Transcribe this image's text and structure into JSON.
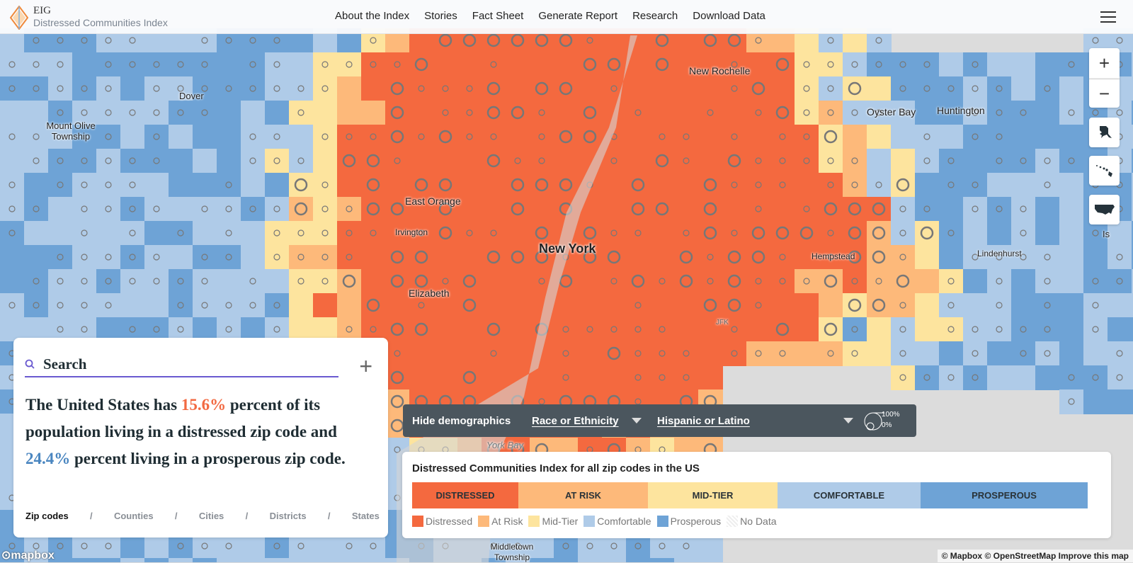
{
  "header": {
    "brand": "EIG",
    "subtitle": "Distressed Communities Index",
    "nav": [
      "About the Index",
      "Stories",
      "Fact Sheet",
      "Generate Report",
      "Research",
      "Download Data"
    ]
  },
  "map_controls": {
    "zoom_in": "+",
    "zoom_out": "−",
    "icons": [
      "alaska-icon",
      "hawaii-icon",
      "usa-icon"
    ]
  },
  "map_labels": {
    "dover": "Dover",
    "mount_olive": "Mount Olive Township",
    "east_orange": "East Orange",
    "irvington": "Irvington",
    "elizabeth": "Elizabeth",
    "new_york": "New York",
    "new_rochelle": "New Rochelle",
    "oyster_bay": "Oyster Bay",
    "huntington": "Huntington",
    "hempstead": "Hempstead",
    "lindenhurst": "Lindenhurst",
    "jfk": "JFK",
    "york_bay": "York Bay",
    "middletown": "Middletown Township",
    "is": "Is"
  },
  "search": {
    "placeholder": "Search"
  },
  "summary": {
    "p1": "The United States has ",
    "distressed_pct": "15.6%",
    "p2": " percent of its population living in a distressed zip code and ",
    "prosperous_pct": "24.4%",
    "p3": " percent living in a prosperous zip code."
  },
  "levels": {
    "items": [
      "Zip codes",
      "Counties",
      "Cities",
      "Districts",
      "States"
    ],
    "active": "Zip codes",
    "separator": "/"
  },
  "demographics": {
    "hide": "Hide demographics",
    "category": "Race or Ethnicity",
    "group": "Hispanic or Latino",
    "max": "100%",
    "min": "0%"
  },
  "legend": {
    "title": "Distressed Communities Index for all zip codes in the US",
    "bands": [
      {
        "label": "DISTRESSED",
        "color": "#f4693f"
      },
      {
        "label": "AT RISK",
        "color": "#fdb97a"
      },
      {
        "label": "MID-TIER",
        "color": "#fde49e"
      },
      {
        "label": "COMFORTABLE",
        "color": "#afcbe8"
      },
      {
        "label": "PROSPEROUS",
        "color": "#6ea3d6"
      }
    ],
    "keys": [
      {
        "label": "Distressed",
        "color": "#f4693f"
      },
      {
        "label": "At Risk",
        "color": "#fdb97a"
      },
      {
        "label": "Mid-Tier",
        "color": "#fde49e"
      },
      {
        "label": "Comfortable",
        "color": "#afcbe8"
      },
      {
        "label": "Prosperous",
        "color": "#6ea3d6"
      },
      {
        "label": "No Data",
        "color": "hatch"
      }
    ]
  },
  "attribution": {
    "text": "© Mapbox © OpenStreetMap  Improve this map",
    "logo": "mapbox"
  }
}
